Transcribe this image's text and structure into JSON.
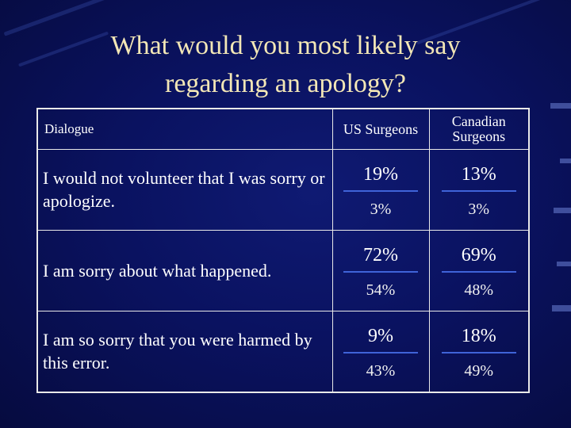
{
  "slide": {
    "title_line1": "What would you most likely say",
    "title_line2": "regarding an apology?"
  },
  "table": {
    "headers": {
      "dialogue": "Dialogue",
      "us": "US Surgeons",
      "canadian_line1": "Canadian",
      "canadian_line2": "Surgeons"
    },
    "rows": [
      {
        "statement": "I would not volunteer that I was sorry or apologize.",
        "us_top": "19%",
        "us_bottom": "3%",
        "ca_top": "13%",
        "ca_bottom": "3%"
      },
      {
        "statement": "I am sorry about what happened.",
        "us_top": "72%",
        "us_bottom": "54%",
        "ca_top": "69%",
        "ca_bottom": "48%"
      },
      {
        "statement": "I am so sorry that you were harmed by this error.",
        "us_top": "9%",
        "us_bottom": "43%",
        "ca_top": "18%",
        "ca_bottom": "49%"
      }
    ]
  },
  "colors": {
    "title": "#f3e7b6",
    "background": "#0a1260",
    "divider": "#3f63d8",
    "text": "#ffffff",
    "border": "#e9e9e9"
  }
}
